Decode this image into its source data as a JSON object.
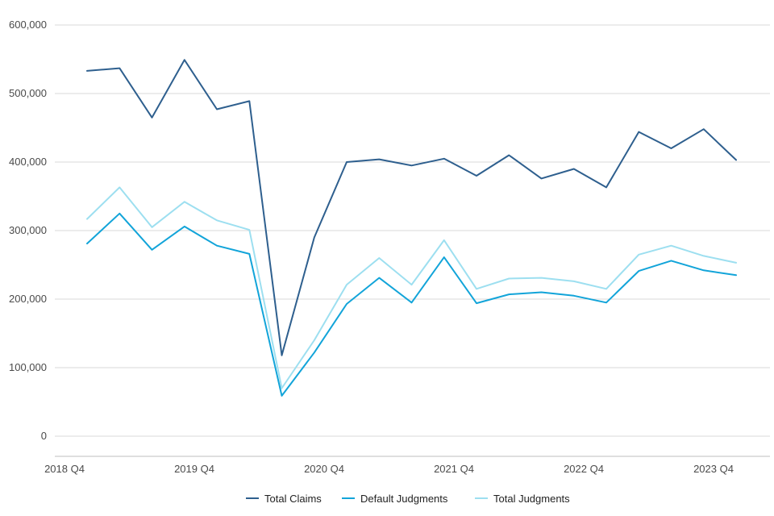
{
  "chart_data": {
    "type": "line",
    "title": "",
    "xlabel": "",
    "ylabel": "",
    "ylim": [
      0,
      600000
    ],
    "yticks": [
      0,
      100000,
      200000,
      300000,
      400000,
      500000,
      600000
    ],
    "ytick_labels": [
      "0",
      "100,000",
      "200,000",
      "300,000",
      "400,000",
      "500,000",
      "600,000"
    ],
    "x_tick_labels": [
      "2018 Q4",
      "2019 Q4",
      "2020 Q4",
      "2021 Q4",
      "2022 Q4",
      "2023 Q4"
    ],
    "x_tick_indices": [
      0,
      4,
      8,
      12,
      16,
      20
    ],
    "num_points": 21,
    "grid": true,
    "legend_position": "bottom",
    "series": [
      {
        "name": "Total Claims",
        "color": "#2e5f8e",
        "values": [
          533000,
          537000,
          465000,
          549000,
          477000,
          489000,
          118000,
          290000,
          400000,
          404000,
          395000,
          405000,
          380000,
          410000,
          376000,
          390000,
          363000,
          444000,
          420000,
          448000,
          403000
        ]
      },
      {
        "name": "Default Judgments",
        "color": "#12a4d9",
        "values": [
          281000,
          325000,
          272000,
          306000,
          278000,
          266000,
          59000,
          122000,
          193000,
          231000,
          195000,
          261000,
          194000,
          207000,
          210000,
          205000,
          195000,
          241000,
          256000,
          242000,
          235000
        ]
      },
      {
        "name": "Total Judgments",
        "color": "#9ddff0",
        "values": [
          317000,
          363000,
          305000,
          342000,
          315000,
          301000,
          70000,
          140000,
          221000,
          260000,
          221000,
          286000,
          215000,
          230000,
          231000,
          226000,
          215000,
          265000,
          278000,
          263000,
          253000
        ]
      }
    ]
  }
}
